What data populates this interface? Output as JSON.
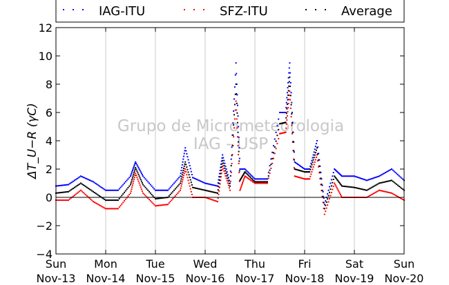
{
  "chart_data": {
    "type": "scatter",
    "title": "",
    "xlabel": "",
    "ylabel": "ΔT_U−R (γC)",
    "ylim": [
      -4,
      12
    ],
    "yticks": [
      -4,
      -2,
      0,
      2,
      4,
      6,
      8,
      10,
      12
    ],
    "xlim": [
      0,
      7
    ],
    "xticks": [
      {
        "x": 0,
        "line1": "Sun",
        "line2": "Nov-13"
      },
      {
        "x": 1,
        "line1": "Mon",
        "line2": "Nov-14"
      },
      {
        "x": 2,
        "line1": "Tue",
        "line2": "Nov-15"
      },
      {
        "x": 3,
        "line1": "Wed",
        "line2": "Nov-16"
      },
      {
        "x": 4,
        "line1": "Thu",
        "line2": "Nov-17"
      },
      {
        "x": 5,
        "line1": "Fri",
        "line2": "Nov-18"
      },
      {
        "x": 6,
        "line1": "Sat",
        "line2": "Nov-19"
      },
      {
        "x": 7,
        "line1": "Sun",
        "line2": "Nov-20"
      }
    ],
    "grid": "vertical",
    "zero_line": true,
    "legend_position": "top",
    "watermark": [
      "Grupo de Micrometeorologia",
      "IAG - USP"
    ],
    "series": [
      {
        "name": "IAG-ITU",
        "color": "#0000ff",
        "marker": "dot"
      },
      {
        "name": "SFZ-ITU",
        "color": "#ff0000",
        "marker": "dot"
      },
      {
        "name": "Average",
        "color": "#000000",
        "marker": "dot"
      }
    ],
    "x": [
      0.0,
      0.25,
      0.5,
      0.75,
      1.0,
      1.25,
      1.5,
      1.6,
      1.75,
      2.0,
      2.25,
      2.5,
      2.6,
      2.75,
      3.0,
      3.25,
      3.35,
      3.5,
      3.62,
      3.7,
      3.8,
      4.0,
      4.25,
      4.5,
      4.62,
      4.7,
      4.8,
      5.0,
      5.1,
      5.25,
      5.4,
      5.6,
      5.75,
      6.0,
      6.25,
      6.5,
      6.75,
      7.0
    ],
    "values_by_series": {
      "IAG-ITU": [
        0.8,
        0.9,
        1.5,
        1.1,
        0.5,
        0.5,
        1.5,
        2.5,
        1.5,
        0.5,
        0.5,
        1.5,
        3.5,
        1.4,
        1.0,
        0.8,
        3.0,
        1.0,
        9.5,
        2.0,
        2.0,
        1.3,
        1.3,
        6.0,
        6.0,
        9.5,
        2.5,
        2.0,
        2.0,
        4.0,
        -0.5,
        2.0,
        1.5,
        1.5,
        1.2,
        1.5,
        2.0,
        1.2
      ],
      "SFZ-ITU": [
        -0.2,
        -0.2,
        0.5,
        -0.3,
        -0.8,
        -0.8,
        0.3,
        1.7,
        0.3,
        -0.6,
        -0.5,
        0.5,
        2.0,
        0.0,
        0.0,
        -0.3,
        2.2,
        0.5,
        6.8,
        0.5,
        1.5,
        1.0,
        1.0,
        4.5,
        4.6,
        7.5,
        1.5,
        1.3,
        1.3,
        3.0,
        -1.2,
        1.0,
        0.0,
        0.0,
        0.0,
        0.5,
        0.3,
        -0.2
      ],
      "Average": [
        0.3,
        0.4,
        1.0,
        0.4,
        -0.2,
        -0.2,
        0.9,
        2.1,
        0.9,
        -0.1,
        0.0,
        1.0,
        2.5,
        0.7,
        0.5,
        0.3,
        2.6,
        0.8,
        8.0,
        1.2,
        1.8,
        1.1,
        1.1,
        5.2,
        5.3,
        8.5,
        2.0,
        1.8,
        1.8,
        3.5,
        -0.8,
        1.5,
        0.8,
        0.7,
        0.5,
        1.0,
        1.2,
        0.5
      ]
    }
  }
}
